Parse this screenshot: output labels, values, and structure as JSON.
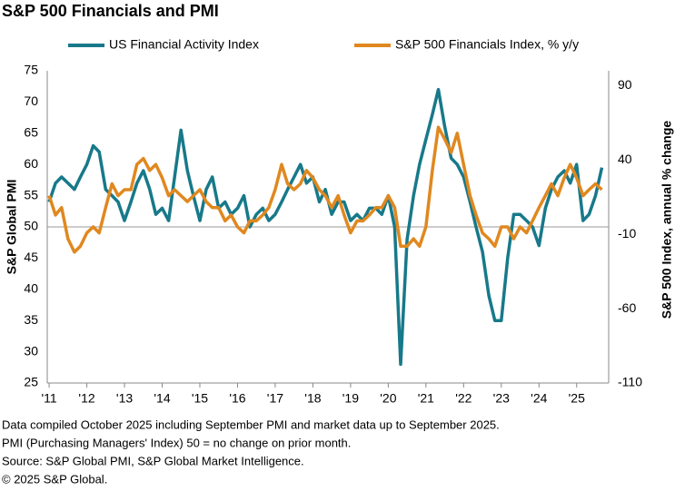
{
  "chart_data": {
    "type": "line",
    "title": "S&P 500 Financials and PMI",
    "ylabel": "S&P Global PMI",
    "y2label": "S&P 500 Index, annual % change",
    "x": [
      2011,
      2011.17,
      2011.33,
      2011.5,
      2011.67,
      2011.83,
      2012,
      2012.17,
      2012.33,
      2012.5,
      2012.67,
      2012.83,
      2013,
      2013.17,
      2013.33,
      2013.5,
      2013.67,
      2013.83,
      2014,
      2014.17,
      2014.33,
      2014.5,
      2014.67,
      2014.83,
      2015,
      2015.17,
      2015.33,
      2015.5,
      2015.67,
      2015.83,
      2016,
      2016.17,
      2016.33,
      2016.5,
      2016.67,
      2016.83,
      2017,
      2017.17,
      2017.33,
      2017.5,
      2017.67,
      2017.83,
      2018,
      2018.17,
      2018.33,
      2018.5,
      2018.67,
      2018.83,
      2019,
      2019.17,
      2019.33,
      2019.5,
      2019.67,
      2019.83,
      2020,
      2020.17,
      2020.33,
      2020.5,
      2020.67,
      2020.83,
      2021,
      2021.17,
      2021.33,
      2021.5,
      2021.67,
      2021.83,
      2022,
      2022.17,
      2022.33,
      2022.5,
      2022.67,
      2022.83,
      2023,
      2023.17,
      2023.33,
      2023.5,
      2023.67,
      2023.83,
      2024,
      2024.17,
      2024.33,
      2024.5,
      2024.67,
      2024.83,
      2025,
      2025.17,
      2025.33,
      2025.5,
      2025.67
    ],
    "series": [
      {
        "name": "US Financial Activity Index",
        "color": "#17798a",
        "axis": "y",
        "values": [
          54,
          57,
          58,
          57,
          56,
          58,
          60,
          63,
          62,
          56,
          55,
          54,
          51,
          54,
          57,
          59,
          56,
          52,
          53,
          51,
          58,
          65.5,
          59,
          55,
          51,
          56,
          58,
          53,
          54,
          52,
          53,
          55,
          50,
          52,
          53,
          51,
          52,
          54,
          56,
          58,
          60,
          57,
          58,
          54,
          56,
          52,
          54,
          54,
          51,
          52,
          51,
          53,
          53,
          52,
          55,
          50,
          28,
          48,
          55,
          60,
          64,
          68,
          72,
          66,
          61,
          60,
          58,
          54,
          50,
          46,
          39,
          35,
          35,
          45,
          52,
          52,
          51,
          50,
          47,
          53,
          56,
          58,
          59,
          57,
          60,
          51,
          52,
          55,
          59.5
        ]
      },
      {
        "name": "S&P 500 Financials Index, % y/y",
        "color": "#e0881f",
        "axis": "y2",
        "values": [
          16,
          3,
          8,
          -13,
          -22,
          -18,
          -9,
          -5,
          -9,
          8,
          24,
          16,
          20,
          20,
          37,
          41,
          33,
          37,
          28,
          16,
          20,
          16,
          12,
          16,
          20,
          12,
          8,
          8,
          -1,
          3,
          -5,
          -9,
          -1,
          -1,
          3,
          8,
          20,
          37,
          24,
          20,
          24,
          33,
          28,
          20,
          16,
          8,
          16,
          3,
          -9,
          -1,
          -1,
          3,
          8,
          8,
          16,
          8,
          -18,
          -18,
          -13,
          -18,
          -5,
          33,
          62,
          54,
          45,
          58,
          37,
          16,
          3,
          -9,
          -13,
          -18,
          -5,
          -5,
          -13,
          -5,
          -9,
          -1,
          8,
          16,
          24,
          16,
          28,
          37,
          28,
          16,
          20,
          24,
          20
        ]
      }
    ],
    "xlim": [
      2010.95,
      2025.85
    ],
    "xticks": [
      {
        "value": 2011,
        "label": "'11"
      },
      {
        "value": 2012,
        "label": "'12"
      },
      {
        "value": 2013,
        "label": "'13"
      },
      {
        "value": 2014,
        "label": "'14"
      },
      {
        "value": 2015,
        "label": "'15"
      },
      {
        "value": 2016,
        "label": "'16"
      },
      {
        "value": 2017,
        "label": "'17"
      },
      {
        "value": 2018,
        "label": "'18"
      },
      {
        "value": 2019,
        "label": "'19"
      },
      {
        "value": 2020,
        "label": "'20"
      },
      {
        "value": 2021,
        "label": "'21"
      },
      {
        "value": 2022,
        "label": "'22"
      },
      {
        "value": 2023,
        "label": "'23"
      },
      {
        "value": 2024,
        "label": "'24"
      },
      {
        "value": 2025,
        "label": "'25"
      }
    ],
    "ylim": [
      25,
      75
    ],
    "yticks": [
      25,
      30,
      35,
      40,
      45,
      50,
      55,
      60,
      65,
      70,
      75
    ],
    "y2lim": [
      -110,
      100
    ],
    "y2ticks": [
      -110,
      -60,
      -10,
      40,
      90
    ],
    "reference_line": 50,
    "notes": [
      "Data compiled October 2025 including September PMI and market data up to September 2025.",
      "PMI (Purchasing Managers' Index) 50 = no change on prior month.",
      "Source: S&P Global PMI, S&P Global Market Intelligence.",
      "© 2025 S&P Global."
    ]
  }
}
